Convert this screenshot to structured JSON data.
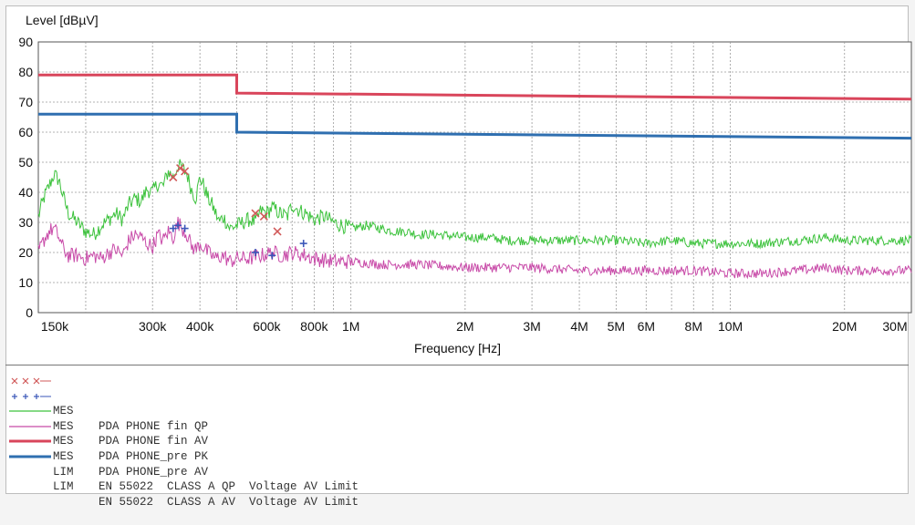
{
  "chart_data": {
    "type": "line",
    "title": "",
    "ylabel": "Level [dBµV]",
    "xlabel": "Frequency [Hz]",
    "x_scale": "log",
    "xlim": [
      150000,
      30000000
    ],
    "ylim": [
      0,
      90
    ],
    "grid": true,
    "yticks": [
      0,
      10,
      20,
      30,
      40,
      50,
      60,
      70,
      80,
      90
    ],
    "xticks": [
      {
        "value": 150000,
        "label": "150k"
      },
      {
        "value": 300000,
        "label": "300k"
      },
      {
        "value": 400000,
        "label": "400k"
      },
      {
        "value": 600000,
        "label": "600k"
      },
      {
        "value": 800000,
        "label": "800k"
      },
      {
        "value": 1000000,
        "label": "1M"
      },
      {
        "value": 2000000,
        "label": "2M"
      },
      {
        "value": 3000000,
        "label": "3M"
      },
      {
        "value": 4000000,
        "label": "4M"
      },
      {
        "value": 5000000,
        "label": "5M"
      },
      {
        "value": 6000000,
        "label": "6M"
      },
      {
        "value": 8000000,
        "label": "8M"
      },
      {
        "value": 10000000,
        "label": "10M"
      },
      {
        "value": 20000000,
        "label": "20M"
      },
      {
        "value": 30000000,
        "label": "30M"
      }
    ],
    "series": [
      {
        "name": "PDA PHONE_pre PK",
        "kind": "MES",
        "color": "#3cc23c",
        "style": "line",
        "points": [
          [
            150000,
            32
          ],
          [
            155000,
            38
          ],
          [
            160000,
            42
          ],
          [
            165000,
            46
          ],
          [
            170000,
            44
          ],
          [
            175000,
            38
          ],
          [
            180000,
            33
          ],
          [
            190000,
            30
          ],
          [
            200000,
            27
          ],
          [
            210000,
            26
          ],
          [
            220000,
            29
          ],
          [
            230000,
            31
          ],
          [
            240000,
            33
          ],
          [
            250000,
            31
          ],
          [
            260000,
            36
          ],
          [
            270000,
            38
          ],
          [
            280000,
            37
          ],
          [
            290000,
            41
          ],
          [
            300000,
            40
          ],
          [
            310000,
            43
          ],
          [
            320000,
            42
          ],
          [
            330000,
            47
          ],
          [
            340000,
            45
          ],
          [
            350000,
            49
          ],
          [
            360000,
            48
          ],
          [
            370000,
            46
          ],
          [
            380000,
            41
          ],
          [
            390000,
            38
          ],
          [
            400000,
            45
          ],
          [
            410000,
            42
          ],
          [
            420000,
            38
          ],
          [
            430000,
            36
          ],
          [
            440000,
            33
          ],
          [
            450000,
            30
          ],
          [
            460000,
            32
          ],
          [
            480000,
            28
          ],
          [
            500000,
            29
          ],
          [
            520000,
            30
          ],
          [
            540000,
            31
          ],
          [
            560000,
            30
          ],
          [
            580000,
            34
          ],
          [
            600000,
            33
          ],
          [
            620000,
            35
          ],
          [
            650000,
            33
          ],
          [
            680000,
            32
          ],
          [
            700000,
            36
          ],
          [
            730000,
            34
          ],
          [
            760000,
            33
          ],
          [
            800000,
            31
          ],
          [
            850000,
            32
          ],
          [
            900000,
            30
          ],
          [
            950000,
            29
          ],
          [
            1000000,
            28
          ],
          [
            1100000,
            29
          ],
          [
            1200000,
            28
          ],
          [
            1300000,
            27
          ],
          [
            1400000,
            27
          ],
          [
            1500000,
            26
          ],
          [
            1700000,
            26
          ],
          [
            2000000,
            25
          ],
          [
            2300000,
            25
          ],
          [
            2600000,
            24
          ],
          [
            3000000,
            24
          ],
          [
            3500000,
            24
          ],
          [
            4000000,
            24
          ],
          [
            5000000,
            24
          ],
          [
            6000000,
            23
          ],
          [
            7000000,
            24
          ],
          [
            8000000,
            23
          ],
          [
            10000000,
            23
          ],
          [
            12000000,
            23
          ],
          [
            15000000,
            24
          ],
          [
            18000000,
            25
          ],
          [
            20000000,
            24
          ],
          [
            25000000,
            24
          ],
          [
            30000000,
            24
          ]
        ]
      },
      {
        "name": "PDA PHONE_pre AV",
        "kind": "MES",
        "color": "#c84aa8",
        "style": "line",
        "points": [
          [
            150000,
            20
          ],
          [
            155000,
            24
          ],
          [
            160000,
            27
          ],
          [
            165000,
            28
          ],
          [
            170000,
            25
          ],
          [
            175000,
            21
          ],
          [
            180000,
            19
          ],
          [
            190000,
            19
          ],
          [
            200000,
            18
          ],
          [
            210000,
            19
          ],
          [
            220000,
            18
          ],
          [
            230000,
            20
          ],
          [
            240000,
            21
          ],
          [
            250000,
            19
          ],
          [
            260000,
            24
          ],
          [
            270000,
            26
          ],
          [
            280000,
            25
          ],
          [
            290000,
            23
          ],
          [
            300000,
            22
          ],
          [
            310000,
            26
          ],
          [
            320000,
            24
          ],
          [
            330000,
            27
          ],
          [
            340000,
            25
          ],
          [
            350000,
            30
          ],
          [
            360000,
            28
          ],
          [
            370000,
            26
          ],
          [
            380000,
            22
          ],
          [
            390000,
            21
          ],
          [
            400000,
            23
          ],
          [
            420000,
            20
          ],
          [
            440000,
            18
          ],
          [
            460000,
            19
          ],
          [
            480000,
            17
          ],
          [
            500000,
            18
          ],
          [
            540000,
            18
          ],
          [
            580000,
            19
          ],
          [
            620000,
            20
          ],
          [
            660000,
            19
          ],
          [
            700000,
            20
          ],
          [
            760000,
            19
          ],
          [
            800000,
            18
          ],
          [
            900000,
            17
          ],
          [
            1000000,
            17
          ],
          [
            1200000,
            16
          ],
          [
            1500000,
            16
          ],
          [
            2000000,
            15
          ],
          [
            3000000,
            15
          ],
          [
            4000000,
            14
          ],
          [
            5000000,
            14
          ],
          [
            6000000,
            14
          ],
          [
            8000000,
            14
          ],
          [
            10000000,
            13
          ],
          [
            12000000,
            13
          ],
          [
            15000000,
            14
          ],
          [
            18000000,
            15
          ],
          [
            20000000,
            14
          ],
          [
            25000000,
            14
          ],
          [
            30000000,
            14
          ]
        ]
      },
      {
        "name": "EN 55022  CLASS A QP  Voltage AV Limit",
        "kind": "LIM",
        "color": "#d9455b",
        "style": "limit",
        "points": [
          [
            150000,
            79
          ],
          [
            500000,
            79
          ],
          [
            500000,
            73
          ],
          [
            30000000,
            71
          ]
        ]
      },
      {
        "name": "EN 55022  CLASS A AV  Voltage AV Limit",
        "kind": "LIM",
        "color": "#2f6fb0",
        "style": "limit",
        "points": [
          [
            150000,
            66
          ],
          [
            500000,
            66
          ],
          [
            500000,
            60
          ],
          [
            30000000,
            58
          ]
        ]
      }
    ],
    "markers": [
      {
        "name": "PDA PHONE fin QP",
        "kind": "MES",
        "color": "#d15a5a",
        "symbol": "x",
        "points": [
          [
            340000,
            45
          ],
          [
            355000,
            48
          ],
          [
            365000,
            47
          ],
          [
            560000,
            33
          ],
          [
            590000,
            32
          ],
          [
            640000,
            27
          ]
        ]
      },
      {
        "name": "PDA PHONE fin AV",
        "kind": "MES",
        "color": "#3a56b8",
        "symbol": "+",
        "points": [
          [
            340000,
            28
          ],
          [
            350000,
            29
          ],
          [
            365000,
            28
          ],
          [
            560000,
            20
          ],
          [
            620000,
            19
          ],
          [
            750000,
            23
          ]
        ]
      }
    ]
  },
  "legend": [
    {
      "symbol": "x",
      "color": "#d15a5a",
      "kind": "MES",
      "text": "PDA PHONE fin QP"
    },
    {
      "symbol": "+",
      "color": "#3a56b8",
      "kind": "MES",
      "text": "PDA PHONE fin AV"
    },
    {
      "symbol": "thin",
      "color": "#3cc23c",
      "kind": "MES",
      "text": "PDA PHONE_pre PK"
    },
    {
      "symbol": "thin",
      "color": "#c84aa8",
      "kind": "MES",
      "text": "PDA PHONE_pre AV"
    },
    {
      "symbol": "thick",
      "color": "#d9455b",
      "kind": "LIM",
      "text": "EN 55022  CLASS A QP  Voltage AV Limit"
    },
    {
      "symbol": "thick",
      "color": "#2f6fb0",
      "kind": "LIM",
      "text": "EN 55022  CLASS A AV  Voltage AV Limit"
    }
  ]
}
